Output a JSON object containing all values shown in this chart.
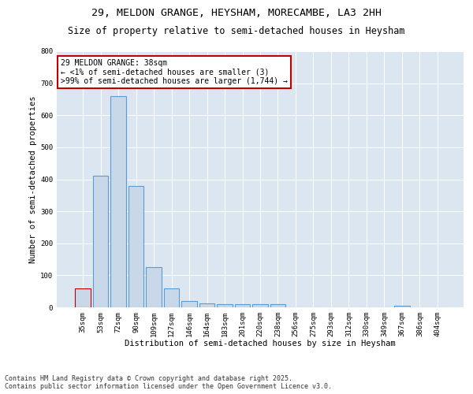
{
  "title1": "29, MELDON GRANGE, HEYSHAM, MORECAMBE, LA3 2HH",
  "title2": "Size of property relative to semi-detached houses in Heysham",
  "xlabel": "Distribution of semi-detached houses by size in Heysham",
  "ylabel": "Number of semi-detached properties",
  "categories": [
    "35sqm",
    "53sqm",
    "72sqm",
    "90sqm",
    "109sqm",
    "127sqm",
    "146sqm",
    "164sqm",
    "183sqm",
    "201sqm",
    "220sqm",
    "238sqm",
    "256sqm",
    "275sqm",
    "293sqm",
    "312sqm",
    "330sqm",
    "349sqm",
    "367sqm",
    "386sqm",
    "404sqm"
  ],
  "values": [
    60,
    410,
    660,
    380,
    125,
    60,
    20,
    13,
    10,
    10,
    10,
    10,
    0,
    0,
    0,
    0,
    0,
    0,
    5,
    0,
    0
  ],
  "bar_color": "#c8d8e8",
  "bar_edge_color": "#5b9bd5",
  "highlight_bar_index": 0,
  "highlight_bar_edge_color": "#c00000",
  "annotation_text": "29 MELDON GRANGE: 38sqm\n← <1% of semi-detached houses are smaller (3)\n>99% of semi-detached houses are larger (1,744) →",
  "annotation_box_color": "#ffffff",
  "annotation_box_edge_color": "#c00000",
  "ylim": [
    0,
    800
  ],
  "yticks": [
    0,
    100,
    200,
    300,
    400,
    500,
    600,
    700,
    800
  ],
  "footer": "Contains HM Land Registry data © Crown copyright and database right 2025.\nContains public sector information licensed under the Open Government Licence v3.0.",
  "plot_bg_color": "#dce6f1",
  "title1_fontsize": 9.5,
  "title2_fontsize": 8.5,
  "axis_label_fontsize": 7.5,
  "tick_fontsize": 6.5,
  "annotation_fontsize": 7,
  "footer_fontsize": 6
}
